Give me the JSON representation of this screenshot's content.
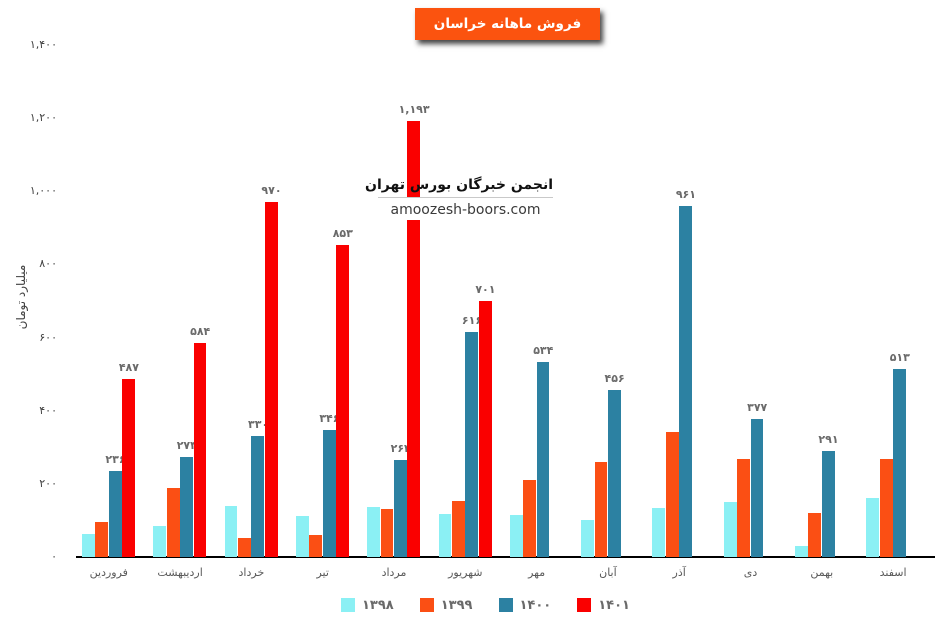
{
  "title": {
    "text": "فروش ماهانه خراسان",
    "badge_color": "#fb530f",
    "text_color": "#ffffff"
  },
  "watermark": {
    "line1": "انجمن خبرگان بورس تهران",
    "line2": "amoozesh-boors.com"
  },
  "chart_data": {
    "type": "bar",
    "title": "فروش ماهانه خراسان",
    "ylabel": "میلیارد تومان",
    "ylim": [
      0,
      1400
    ],
    "grid": false,
    "legend_position": "bottom-center",
    "categories": [
      "فروردین",
      "اردیبهشت",
      "خرداد",
      "تیر",
      "مرداد",
      "شهریور",
      "مهر",
      "آبان",
      "آذر",
      "دی",
      "بهمن",
      "اسفند"
    ],
    "yticks": [
      {
        "value": 0,
        "label": "۰"
      },
      {
        "value": 200,
        "label": "۲۰۰"
      },
      {
        "value": 400,
        "label": "۴۰۰"
      },
      {
        "value": 600,
        "label": "۶۰۰"
      },
      {
        "value": 800,
        "label": "۸۰۰"
      },
      {
        "value": 1000,
        "label": "۱,۰۰۰"
      },
      {
        "value": 1200,
        "label": "۱,۲۰۰"
      },
      {
        "value": 1400,
        "label": "۱,۴۰۰"
      }
    ],
    "series": [
      {
        "name": "۱۳۹۸",
        "color": "#8bf0f4",
        "values": [
          63,
          86,
          140,
          113,
          136,
          118,
          116,
          102,
          134,
          151,
          31,
          162
        ],
        "data_labels": null
      },
      {
        "name": "۱۳۹۹",
        "color": "#fb4f14",
        "values": [
          95,
          188,
          53,
          61,
          132,
          153,
          210,
          260,
          341,
          268,
          121,
          267
        ],
        "data_labels": null
      },
      {
        "name": "۱۴۰۰",
        "color": "#2c81a2",
        "values": [
          236,
          273,
          330,
          346,
          264,
          616,
          534,
          456,
          961,
          377,
          291,
          513
        ],
        "data_labels": [
          "۲۳۶",
          "۲۷۳",
          "۳۳۰",
          "۳۴۶",
          "۲۶۴",
          "۶۱۶",
          "۵۳۴",
          "۴۵۶",
          "۹۶۱",
          "۳۷۷",
          "۲۹۱",
          "۵۱۳"
        ]
      },
      {
        "name": "۱۴۰۱",
        "color": "#fa0000",
        "values": [
          487,
          584,
          970,
          853,
          1193,
          701,
          null,
          null,
          null,
          null,
          null,
          null
        ],
        "data_labels": [
          "۴۸۷",
          "۵۸۴",
          "۹۷۰",
          "۸۵۳",
          "۱,۱۹۳",
          "۷۰۱",
          null,
          null,
          null,
          null,
          null,
          null
        ]
      }
    ]
  }
}
